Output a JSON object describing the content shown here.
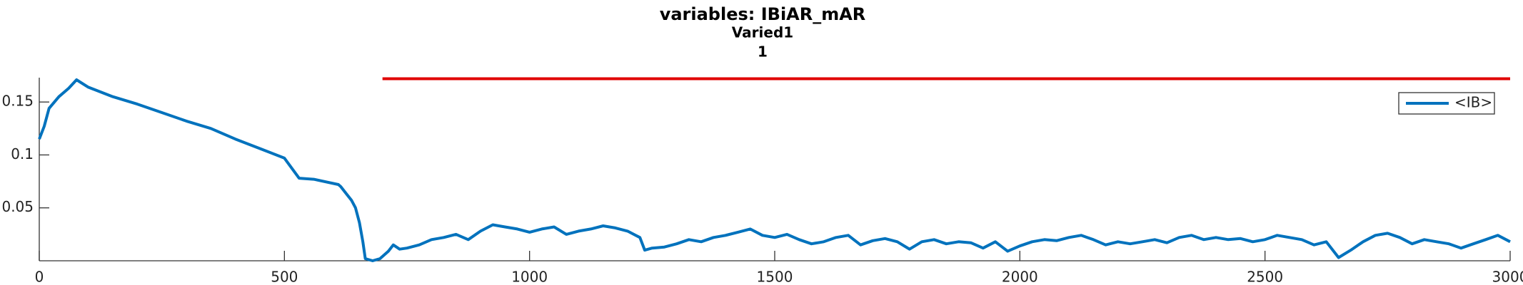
{
  "chart_data": {
    "type": "line",
    "title": "variables: IBiAR_mAR",
    "subtitle": "Varied1",
    "annotation": "1",
    "x": [
      0,
      10,
      20,
      40,
      60,
      76,
      100,
      150,
      200,
      250,
      300,
      350,
      400,
      450,
      500,
      530,
      560,
      610,
      615,
      625,
      637,
      645,
      653,
      660,
      665,
      680,
      695,
      712,
      722,
      735,
      750,
      775,
      800,
      825,
      850,
      875,
      900,
      925,
      950,
      975,
      1000,
      1025,
      1050,
      1075,
      1100,
      1125,
      1150,
      1175,
      1200,
      1225,
      1235,
      1250,
      1275,
      1300,
      1325,
      1350,
      1375,
      1400,
      1425,
      1450,
      1475,
      1500,
      1525,
      1550,
      1575,
      1600,
      1625,
      1650,
      1675,
      1700,
      1725,
      1750,
      1775,
      1800,
      1825,
      1850,
      1875,
      1900,
      1925,
      1950,
      1975,
      2000,
      2025,
      2050,
      2075,
      2100,
      2125,
      2150,
      2175,
      2200,
      2225,
      2250,
      2275,
      2300,
      2325,
      2350,
      2375,
      2400,
      2425,
      2450,
      2475,
      2500,
      2525,
      2550,
      2575,
      2600,
      2625,
      2650,
      2675,
      2700,
      2725,
      2750,
      2775,
      2800,
      2825,
      2850,
      2875,
      2900,
      2925,
      2950,
      2975,
      3000
    ],
    "series": [
      {
        "name": "<IB>",
        "color": "#0072bd",
        "values": [
          0.115,
          0.127,
          0.144,
          0.155,
          0.163,
          0.171,
          0.164,
          0.155,
          0.148,
          0.14,
          0.132,
          0.125,
          0.115,
          0.106,
          0.097,
          0.078,
          0.077,
          0.072,
          0.07,
          0.064,
          0.057,
          0.05,
          0.036,
          0.018,
          0.002,
          0.0,
          0.002,
          0.009,
          0.015,
          0.011,
          0.012,
          0.015,
          0.02,
          0.022,
          0.025,
          0.02,
          0.028,
          0.034,
          0.032,
          0.03,
          0.027,
          0.03,
          0.032,
          0.025,
          0.028,
          0.03,
          0.033,
          0.031,
          0.028,
          0.022,
          0.01,
          0.012,
          0.013,
          0.016,
          0.02,
          0.018,
          0.022,
          0.024,
          0.027,
          0.03,
          0.024,
          0.022,
          0.025,
          0.02,
          0.016,
          0.018,
          0.022,
          0.024,
          0.015,
          0.019,
          0.021,
          0.018,
          0.011,
          0.018,
          0.02,
          0.016,
          0.018,
          0.017,
          0.012,
          0.018,
          0.009,
          0.014,
          0.018,
          0.02,
          0.019,
          0.022,
          0.024,
          0.02,
          0.015,
          0.018,
          0.016,
          0.018,
          0.02,
          0.017,
          0.022,
          0.024,
          0.02,
          0.022,
          0.02,
          0.021,
          0.018,
          0.02,
          0.024,
          0.022,
          0.02,
          0.015,
          0.018,
          0.003,
          0.01,
          0.018,
          0.024,
          0.026,
          0.022,
          0.016,
          0.02,
          0.018,
          0.016,
          0.012,
          0.016,
          0.02,
          0.024,
          0.018
        ]
      }
    ],
    "reference_line": {
      "x": [
        700,
        3000
      ],
      "y": 0.172,
      "color": "#e00000"
    },
    "xlim": [
      0,
      3000
    ],
    "xticks": [
      0,
      500,
      1000,
      1500,
      2000,
      2500,
      3000
    ],
    "ylim": [
      0,
      0.173
    ],
    "yticks": [
      0.05,
      0.1,
      0.15
    ],
    "legend": "top-right"
  }
}
